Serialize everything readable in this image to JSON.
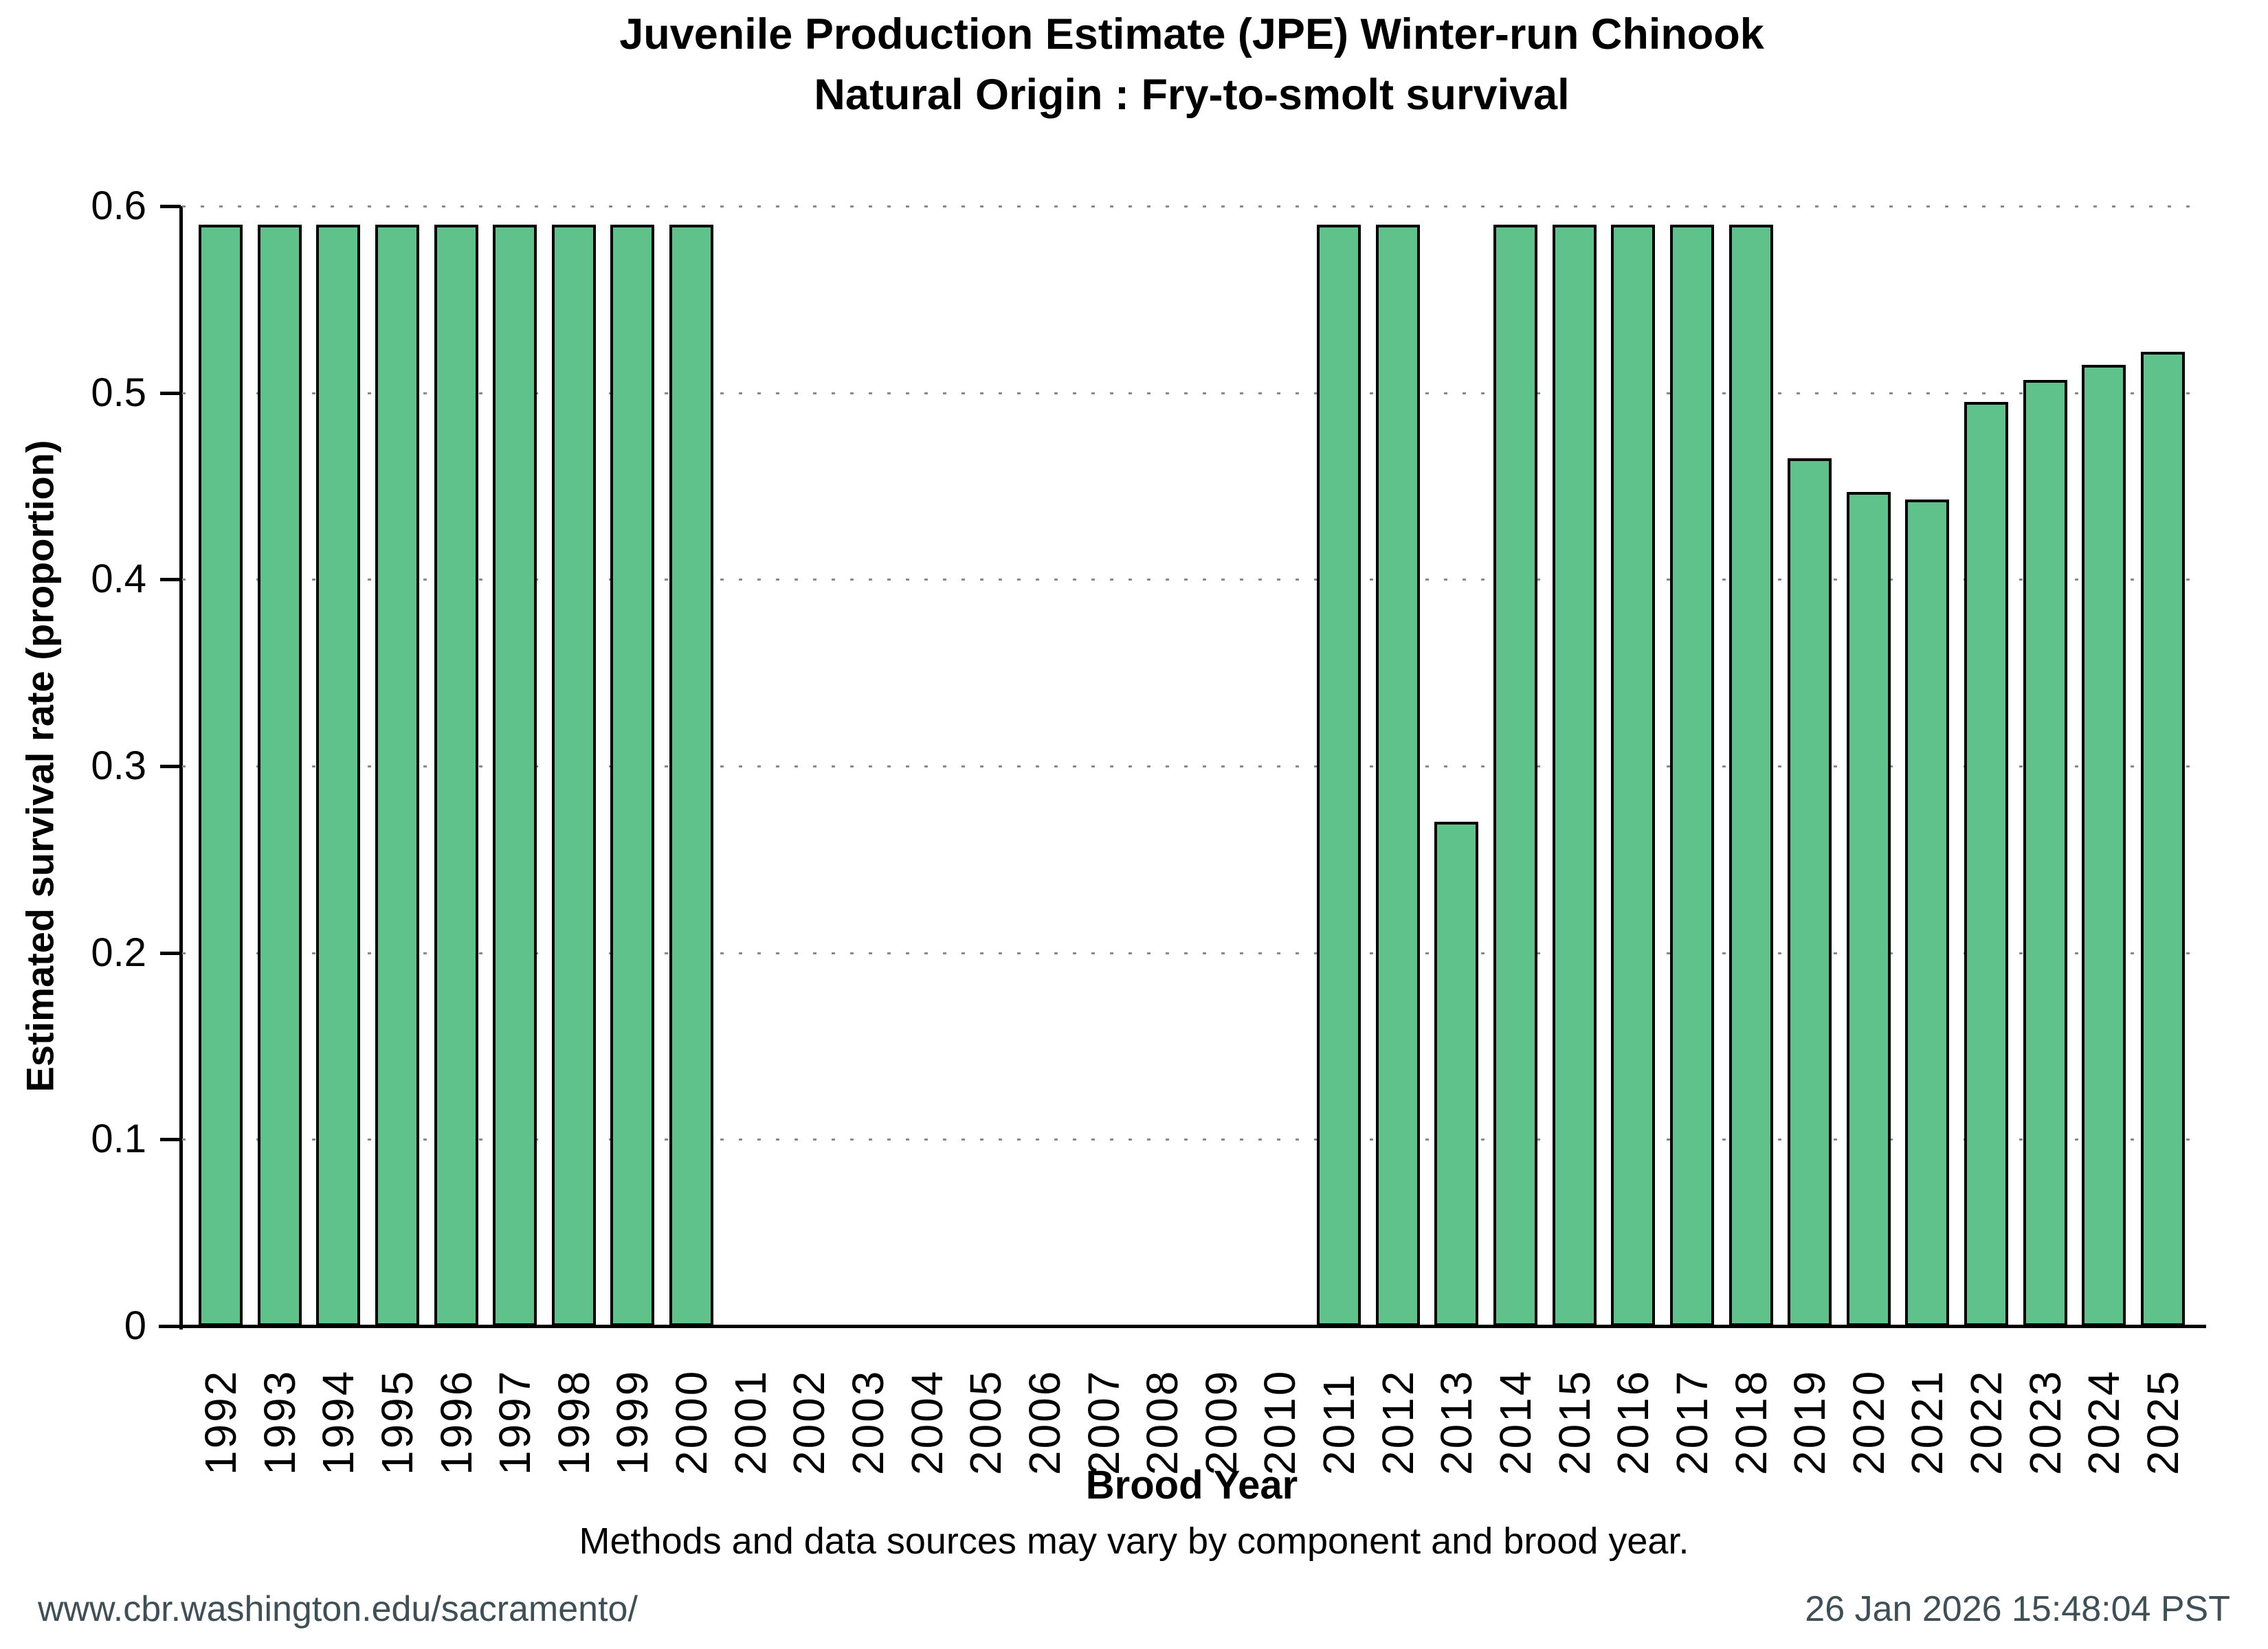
{
  "title": {
    "line1": "Juvenile Production Estimate (JPE) Winter-run Chinook",
    "line2": "Natural Origin : Fry-to-smolt survival"
  },
  "note": "Methods and data sources may vary by component and brood year.",
  "footer": {
    "left_url": "www.cbr.washington.edu/sacramento/",
    "right_timestamp": "26 Jan 2026 15:48:04 PST"
  },
  "colors": {
    "bar_fill": "#5FC28B",
    "bar_edge": "#000000",
    "gridline": "#8a8a8a",
    "axis": "#000000",
    "footer_text": "#3E4F55",
    "title_text": "#000000"
  },
  "chart_data": {
    "type": "bar",
    "title": "Juvenile Production Estimate (JPE) Winter-run Chinook — Natural Origin : Fry-to-smolt survival",
    "xlabel": "Brood Year",
    "ylabel": "Estimated survival rate (proportion)",
    "ylim": [
      0,
      0.6
    ],
    "ytick_values": [
      0,
      0.1,
      0.2,
      0.3,
      0.4,
      0.5,
      0.6
    ],
    "ytick_labels": [
      "0",
      "0.1",
      "0.2",
      "0.3",
      "0.4",
      "0.5",
      "0.6"
    ],
    "grid": "horizontal dotted gridlines at each y tick",
    "legend": "none",
    "categories": [
      "1992",
      "1993",
      "1994",
      "1995",
      "1996",
      "1997",
      "1998",
      "1999",
      "2000",
      "2001",
      "2002",
      "2003",
      "2004",
      "2005",
      "2006",
      "2007",
      "2008",
      "2009",
      "2010",
      "2011",
      "2012",
      "2013",
      "2014",
      "2015",
      "2016",
      "2017",
      "2018",
      "2019",
      "2020",
      "2021",
      "2022",
      "2023",
      "2024",
      "2025"
    ],
    "values": [
      0.59,
      0.59,
      0.59,
      0.59,
      0.59,
      0.59,
      0.59,
      0.59,
      0.59,
      null,
      null,
      null,
      null,
      null,
      null,
      null,
      null,
      null,
      null,
      0.59,
      0.59,
      0.27,
      0.59,
      0.59,
      0.59,
      0.59,
      0.59,
      0.465,
      0.447,
      0.443,
      0.495,
      0.507,
      0.515,
      0.522
    ]
  }
}
